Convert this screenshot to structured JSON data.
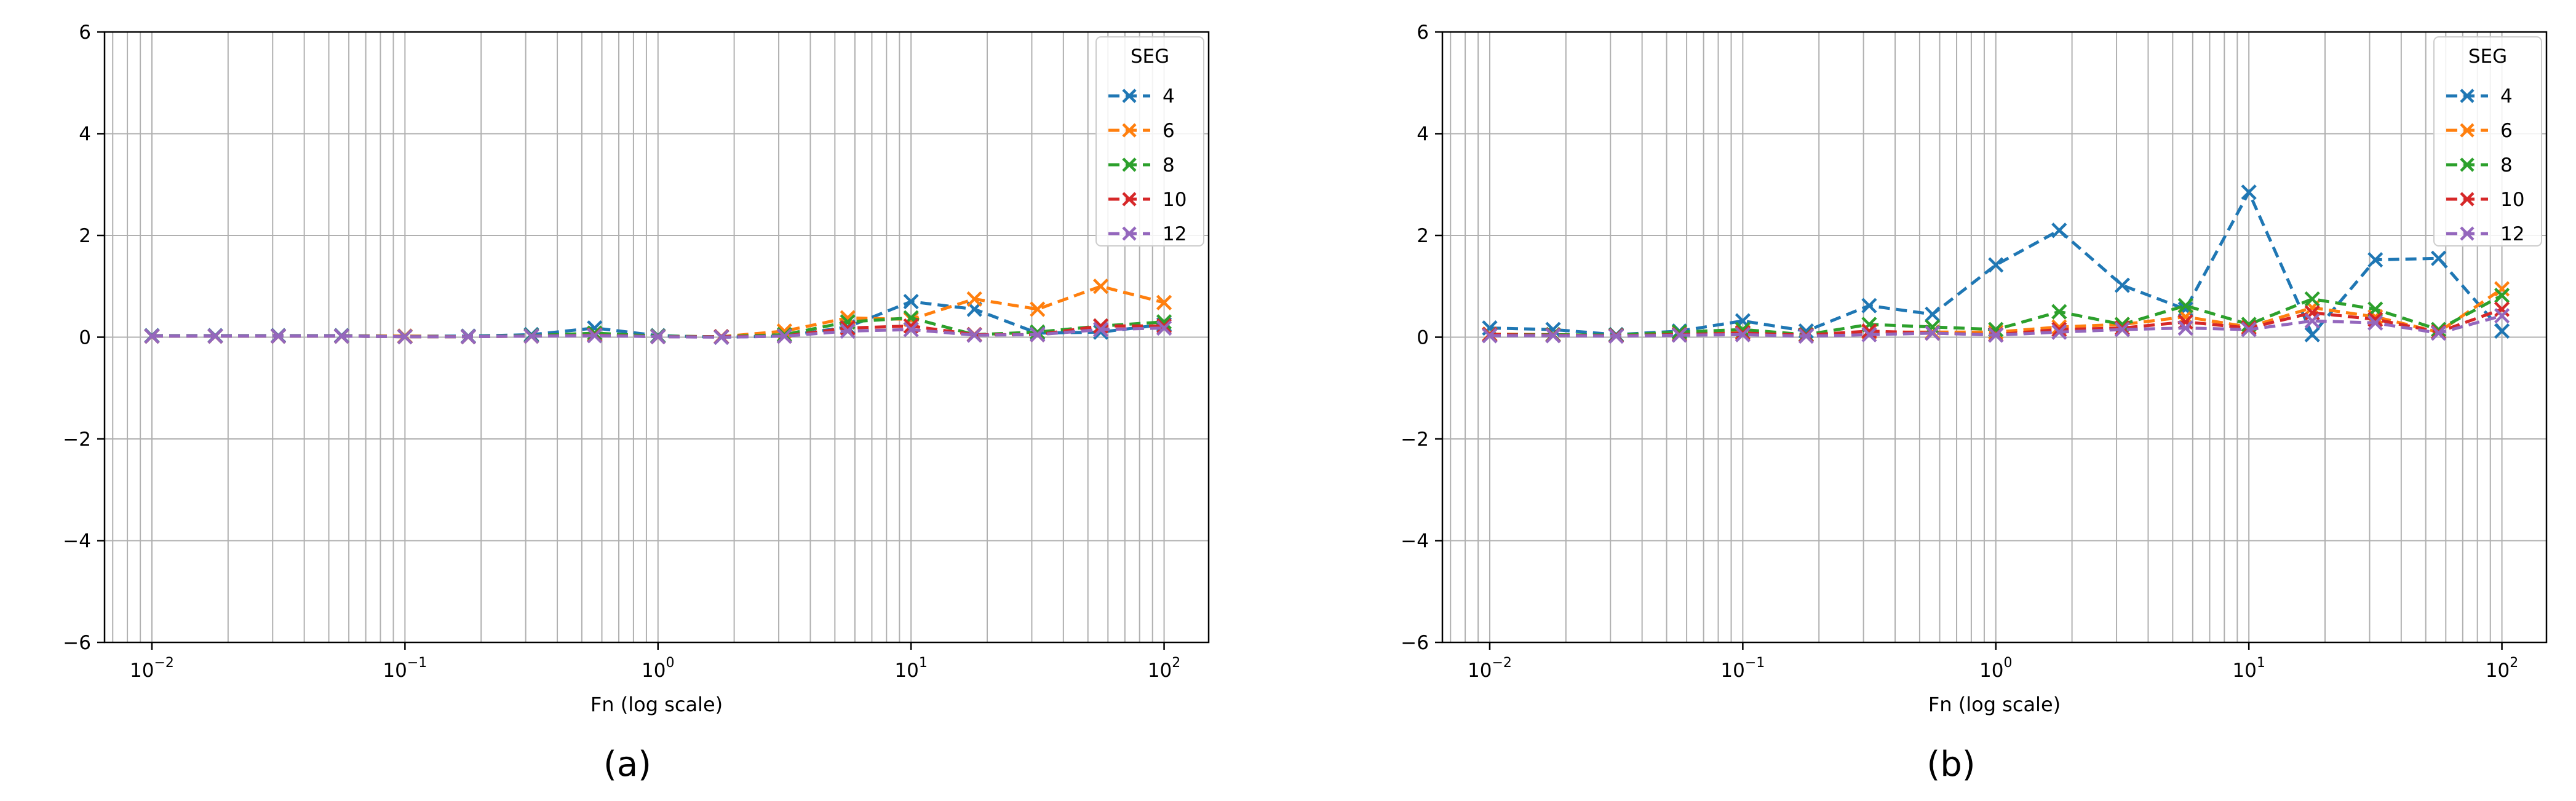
{
  "panel_labels": [
    "(a)",
    "(b)"
  ],
  "chart_data": [
    {
      "type": "line",
      "xlabel": "Fn (log scale)",
      "xscale": "log",
      "xlim": [
        0.0065,
        150
      ],
      "ylim": [
        -6,
        6
      ],
      "yticks": [
        -6,
        -4,
        -2,
        0,
        2,
        4,
        6
      ],
      "xticks": [
        {
          "value": 0.01,
          "exp": "-2"
        },
        {
          "value": 0.1,
          "exp": "-1"
        },
        {
          "value": 1,
          "exp": "0"
        },
        {
          "value": 10,
          "exp": "1"
        },
        {
          "value": 100,
          "exp": "2"
        }
      ],
      "grid": true,
      "legend": {
        "title": "SEG",
        "position": "top-right"
      },
      "x": [
        0.01,
        0.0178,
        0.0316,
        0.0562,
        0.1,
        0.178,
        0.316,
        0.562,
        1,
        1.78,
        3.16,
        5.62,
        10,
        17.8,
        31.6,
        56.2,
        100
      ],
      "series": [
        {
          "name": "4",
          "color": "#1f77b4",
          "values": [
            0.03,
            0.03,
            0.03,
            0.03,
            0.02,
            0.02,
            0.05,
            0.18,
            0.03,
            0.0,
            0.02,
            0.2,
            0.7,
            0.55,
            0.08,
            0.1,
            0.25
          ]
        },
        {
          "name": "6",
          "color": "#ff7f0e",
          "values": [
            0.02,
            0.02,
            0.02,
            0.02,
            0.02,
            0.01,
            0.02,
            0.05,
            0.02,
            0.01,
            0.12,
            0.38,
            0.35,
            0.75,
            0.55,
            1.0,
            0.68
          ]
        },
        {
          "name": "8",
          "color": "#2ca02c",
          "values": [
            0.02,
            0.02,
            0.02,
            0.02,
            0.01,
            0.01,
            0.03,
            0.08,
            0.02,
            0.01,
            0.05,
            0.3,
            0.38,
            0.05,
            0.1,
            0.22,
            0.3
          ]
        },
        {
          "name": "10",
          "color": "#d62728",
          "values": [
            0.02,
            0.02,
            0.02,
            0.02,
            0.01,
            0.01,
            0.02,
            0.04,
            0.01,
            0.01,
            0.02,
            0.18,
            0.22,
            0.05,
            0.05,
            0.22,
            0.22
          ]
        },
        {
          "name": "12",
          "color": "#9467bd",
          "values": [
            0.02,
            0.02,
            0.02,
            0.02,
            0.01,
            0.01,
            0.02,
            0.03,
            0.01,
            0.0,
            0.02,
            0.12,
            0.15,
            0.04,
            0.05,
            0.15,
            0.18
          ]
        }
      ]
    },
    {
      "type": "line",
      "xlabel": "Fn (log scale)",
      "xscale": "log",
      "xlim": [
        0.0065,
        150
      ],
      "ylim": [
        -6,
        6
      ],
      "yticks": [
        -6,
        -4,
        -2,
        0,
        2,
        4,
        6
      ],
      "xticks": [
        {
          "value": 0.01,
          "exp": "-2"
        },
        {
          "value": 0.1,
          "exp": "-1"
        },
        {
          "value": 1,
          "exp": "0"
        },
        {
          "value": 10,
          "exp": "1"
        },
        {
          "value": 100,
          "exp": "2"
        }
      ],
      "grid": true,
      "legend": {
        "title": "SEG",
        "position": "top-right"
      },
      "x": [
        0.01,
        0.0178,
        0.0316,
        0.0562,
        0.1,
        0.178,
        0.316,
        0.562,
        1,
        1.78,
        3.16,
        5.62,
        10,
        17.8,
        31.6,
        56.2,
        100
      ],
      "series": [
        {
          "name": "4",
          "color": "#1f77b4",
          "values": [
            0.18,
            0.15,
            0.05,
            0.12,
            0.32,
            0.12,
            0.62,
            0.45,
            1.42,
            2.1,
            1.02,
            0.55,
            2.85,
            0.05,
            1.52,
            1.55,
            0.12
          ]
        },
        {
          "name": "6",
          "color": "#ff7f0e",
          "values": [
            0.06,
            0.05,
            0.03,
            0.06,
            0.1,
            0.05,
            0.1,
            0.1,
            0.1,
            0.2,
            0.25,
            0.4,
            0.2,
            0.58,
            0.4,
            0.1,
            0.95
          ]
        },
        {
          "name": "8",
          "color": "#2ca02c",
          "values": [
            0.05,
            0.05,
            0.04,
            0.1,
            0.15,
            0.05,
            0.25,
            0.2,
            0.15,
            0.5,
            0.25,
            0.62,
            0.25,
            0.75,
            0.55,
            0.15,
            0.82
          ]
        },
        {
          "name": "10",
          "color": "#d62728",
          "values": [
            0.05,
            0.04,
            0.03,
            0.05,
            0.08,
            0.04,
            0.12,
            0.08,
            0.05,
            0.15,
            0.18,
            0.3,
            0.18,
            0.48,
            0.35,
            0.1,
            0.55
          ]
        },
        {
          "name": "12",
          "color": "#9467bd",
          "values": [
            0.03,
            0.03,
            0.02,
            0.04,
            0.05,
            0.02,
            0.05,
            0.08,
            0.04,
            0.1,
            0.15,
            0.18,
            0.15,
            0.32,
            0.28,
            0.08,
            0.42
          ]
        }
      ]
    }
  ]
}
